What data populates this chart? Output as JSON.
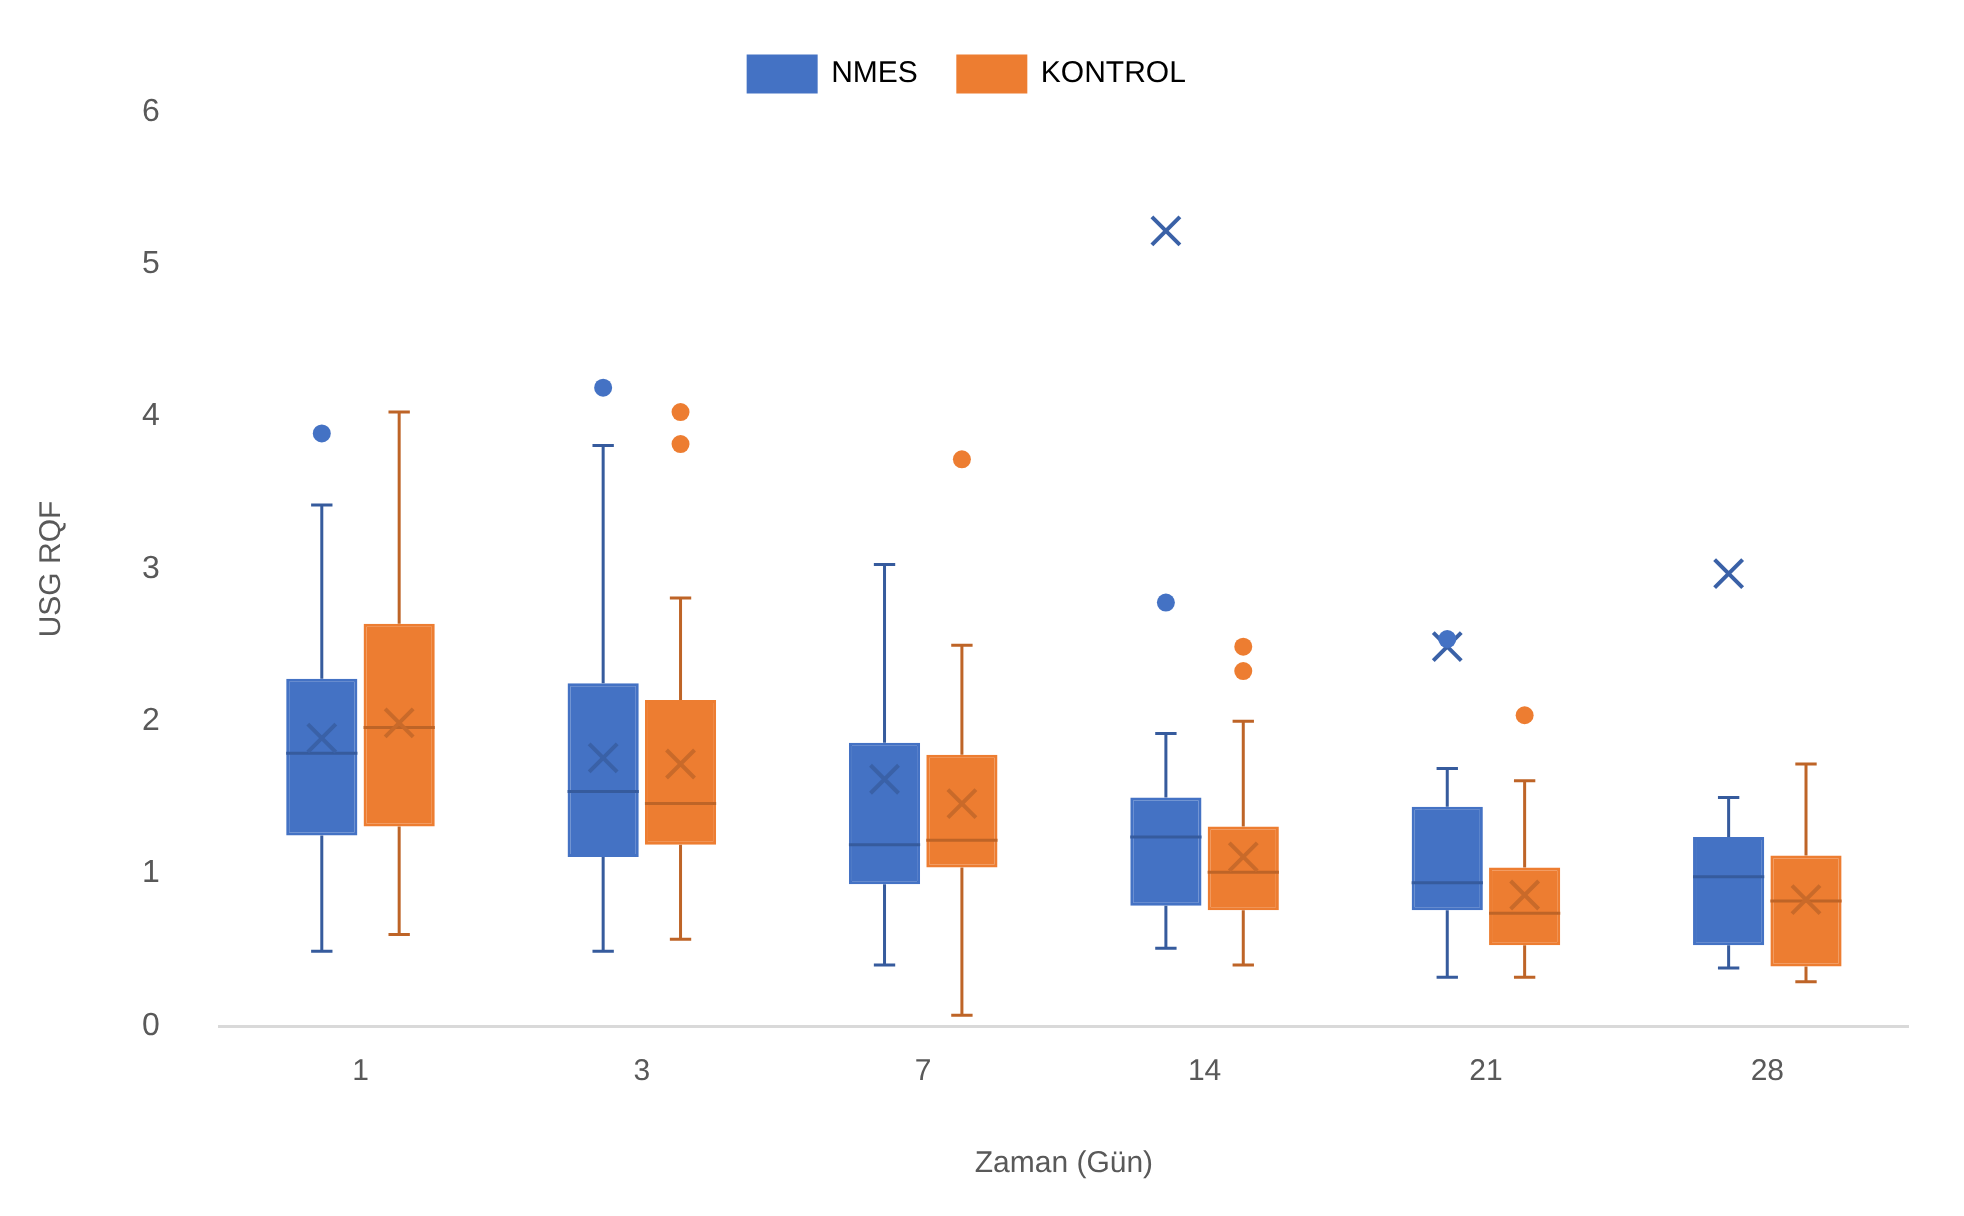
{
  "chart_data": {
    "type": "box",
    "xlabel": "Zaman (Gün)",
    "ylabel": "USG RQF",
    "categories": [
      "1",
      "3",
      "7",
      "14",
      "21",
      "28"
    ],
    "series": [
      {
        "name": "NMES",
        "color": "#4472c4",
        "boxes": [
          {
            "low": 0.49,
            "q1": 1.25,
            "median": 1.79,
            "q3": 2.28,
            "high": 3.42,
            "mean": 1.89,
            "outliers": [
              3.89
            ]
          },
          {
            "low": 0.49,
            "q1": 1.11,
            "median": 1.54,
            "q3": 2.25,
            "high": 3.81,
            "mean": 1.76,
            "outliers": [
              4.19
            ]
          },
          {
            "low": 0.4,
            "q1": 0.93,
            "median": 1.19,
            "q3": 1.86,
            "high": 3.03,
            "mean": 1.62
          },
          {
            "low": 0.51,
            "q1": 0.79,
            "median": 1.24,
            "q3": 1.5,
            "high": 1.92,
            "mean": 5.22,
            "outliers": [
              2.78
            ]
          },
          {
            "low": 0.32,
            "q1": 0.76,
            "median": 0.94,
            "q3": 1.44,
            "high": 1.69,
            "mean": 2.49,
            "outliers": [
              2.54
            ]
          },
          {
            "low": 0.38,
            "q1": 0.53,
            "median": 0.98,
            "q3": 1.24,
            "high": 1.5,
            "mean": 2.97
          }
        ]
      },
      {
        "name": "KONTROL",
        "color": "#ed7d31",
        "boxes": [
          {
            "low": 0.6,
            "q1": 1.31,
            "median": 1.96,
            "q3": 2.64,
            "high": 4.03,
            "mean": 1.99
          },
          {
            "low": 0.57,
            "q1": 1.19,
            "median": 1.46,
            "q3": 2.14,
            "high": 2.81,
            "mean": 1.72,
            "outliers": [
              4.03,
              3.82
            ]
          },
          {
            "low": 0.07,
            "q1": 1.04,
            "median": 1.22,
            "q3": 1.78,
            "high": 2.5,
            "mean": 1.46,
            "outliers": [
              3.72
            ]
          },
          {
            "low": 0.4,
            "q1": 0.76,
            "median": 1.01,
            "q3": 1.31,
            "high": 2.0,
            "mean": 1.11,
            "outliers": [
              2.49,
              2.33
            ]
          },
          {
            "low": 0.32,
            "q1": 0.53,
            "median": 0.74,
            "q3": 1.04,
            "high": 1.61,
            "mean": 0.86,
            "outliers": [
              2.04
            ]
          },
          {
            "low": 0.29,
            "q1": 0.39,
            "median": 0.82,
            "q3": 1.12,
            "high": 1.72,
            "mean": 0.83
          }
        ]
      }
    ],
    "ylim": [
      0,
      6
    ],
    "yticks": [
      0,
      1,
      2,
      3,
      4,
      5,
      6
    ],
    "grid": false,
    "legend": "top"
  }
}
